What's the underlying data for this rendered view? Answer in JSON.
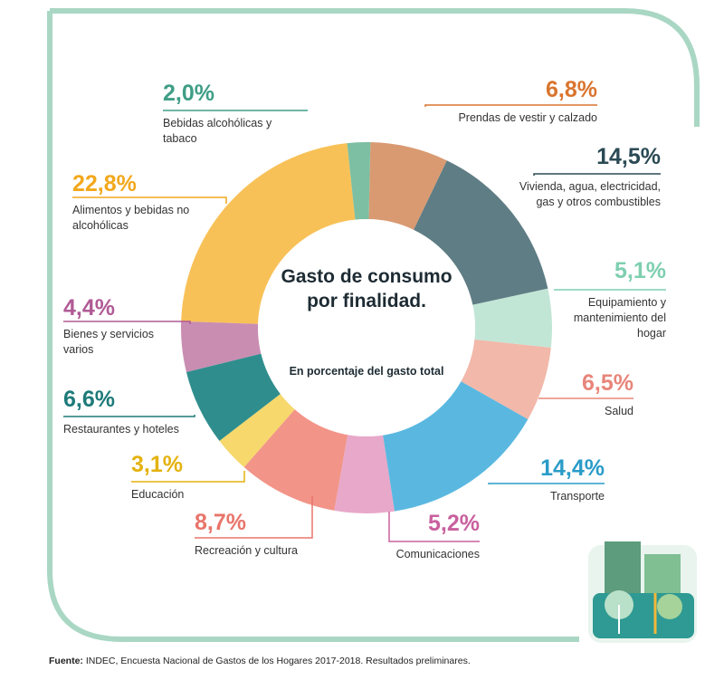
{
  "chart_data": {
    "type": "donut",
    "title": "Gasto de consumo por finalidad.",
    "subtitle": "En porcentaje del gasto total",
    "categories": [
      "Bebidas alcohólicas y tabaco",
      "Prendas de vestir y calzado",
      "Vivienda, agua, electricidad, gas y otros combustibles",
      "Equipamiento y mantenimiento del hogar",
      "Salud",
      "Transporte",
      "Comunicaciones",
      "Recreación y cultura",
      "Educación",
      "Restaurantes y hoteles",
      "Bienes y servicios varios",
      "Alimentos y bebidas no alcohólicas"
    ],
    "values": [
      2.0,
      6.8,
      14.5,
      5.1,
      6.5,
      14.4,
      5.2,
      8.7,
      3.1,
      6.6,
      4.4,
      22.8
    ],
    "value_labels": [
      "2,0%",
      "6,8%",
      "14,5%",
      "5,1%",
      "6,5%",
      "14,4%",
      "5,2%",
      "8,7%",
      "3,1%",
      "6,6%",
      "4,4%",
      "22,8%"
    ],
    "colors": [
      "#7cbfa3",
      "#d99a72",
      "#5f7d84",
      "#c2e6d6",
      "#f2b8aa",
      "#5ab8e0",
      "#e8a8c9",
      "#f29488",
      "#f6d86c",
      "#2f8e8d",
      "#c98db2",
      "#f8c157"
    ],
    "label_colors": [
      "#3f9e86",
      "#d9752e",
      "#2b4a55",
      "#7ecfb0",
      "#e8857a",
      "#2a9cc8",
      "#c9609e",
      "#e8756b",
      "#e4b20f",
      "#1e7a7a",
      "#b05a95",
      "#f2a81d"
    ],
    "source_label": "Fuente:",
    "source": "INDEC, Encuesta Nacional de Gastos de los Hogares 2017-2018. Resultados preliminares."
  }
}
